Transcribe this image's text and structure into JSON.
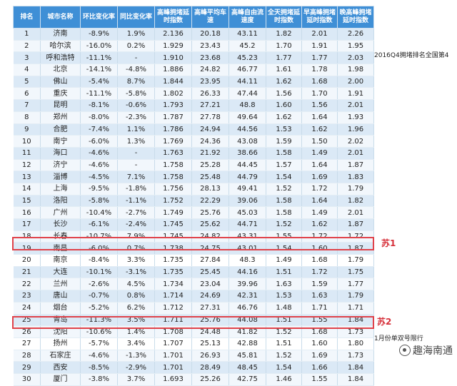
{
  "headers": [
    "排名",
    "城市名称",
    "环比变化率",
    "同比变化率",
    "高峰拥堵延时指数",
    "高峰平均车速",
    "高峰自由流速度",
    "全天拥堵延时指数",
    "早高峰拥堵延时指数",
    "晚高峰拥堵延时指数"
  ],
  "rows": [
    [
      "1",
      "济南",
      "-8.9%",
      "1.9%",
      "2.136",
      "20.18",
      "43.11",
      "1.82",
      "2.01",
      "2.26"
    ],
    [
      "2",
      "哈尔滨",
      "-16.0%",
      "0.2%",
      "1.929",
      "23.43",
      "45.2",
      "1.70",
      "1.91",
      "1.95"
    ],
    [
      "3",
      "呼和浩特",
      "-11.1%",
      "-",
      "1.910",
      "23.68",
      "45.23",
      "1.77",
      "1.77",
      "2.03"
    ],
    [
      "4",
      "北京",
      "-14.1%",
      "-4.8%",
      "1.886",
      "24.82",
      "46.77",
      "1.61",
      "1.78",
      "1.98"
    ],
    [
      "5",
      "佛山",
      "-5.4%",
      "8.7%",
      "1.844",
      "23.95",
      "44.11",
      "1.62",
      "1.68",
      "2.00"
    ],
    [
      "6",
      "重庆",
      "-11.1%",
      "-5.8%",
      "1.802",
      "26.33",
      "47.44",
      "1.56",
      "1.70",
      "1.91"
    ],
    [
      "7",
      "昆明",
      "-8.1%",
      "-0.6%",
      "1.793",
      "27.21",
      "48.8",
      "1.60",
      "1.56",
      "2.01"
    ],
    [
      "8",
      "郑州",
      "-8.0%",
      "-2.3%",
      "1.787",
      "27.78",
      "49.64",
      "1.62",
      "1.64",
      "1.93"
    ],
    [
      "9",
      "合肥",
      "-7.4%",
      "1.1%",
      "1.786",
      "24.94",
      "44.56",
      "1.53",
      "1.62",
      "1.96"
    ],
    [
      "10",
      "南宁",
      "-6.0%",
      "1.3%",
      "1.769",
      "24.36",
      "43.08",
      "1.59",
      "1.50",
      "2.02"
    ],
    [
      "11",
      "海口",
      "-4.6%",
      "-",
      "1.763",
      "21.92",
      "38.66",
      "1.58",
      "1.49",
      "2.01"
    ],
    [
      "12",
      "济宁",
      "-4.6%",
      "-",
      "1.758",
      "25.28",
      "44.45",
      "1.57",
      "1.64",
      "1.87"
    ],
    [
      "13",
      "淄博",
      "-4.5%",
      "7.1%",
      "1.758",
      "25.48",
      "44.79",
      "1.54",
      "1.69",
      "1.83"
    ],
    [
      "14",
      "上海",
      "-9.5%",
      "-1.8%",
      "1.756",
      "28.13",
      "49.41",
      "1.52",
      "1.72",
      "1.79"
    ],
    [
      "15",
      "洛阳",
      "-5.8%",
      "-1.1%",
      "1.752",
      "22.29",
      "39.06",
      "1.58",
      "1.64",
      "1.82"
    ],
    [
      "16",
      "广州",
      "-10.4%",
      "-2.7%",
      "1.749",
      "25.76",
      "45.03",
      "1.58",
      "1.49",
      "2.01"
    ],
    [
      "17",
      "长沙",
      "-6.1%",
      "-2.4%",
      "1.745",
      "25.62",
      "44.71",
      "1.52",
      "1.62",
      "1.87"
    ],
    [
      "18",
      "长春",
      "-10.7%",
      "7.9%",
      "1.745",
      "24.82",
      "43.31",
      "1.55",
      "1.72",
      "1.72"
    ],
    [
      "19",
      "南昌",
      "-6.0%",
      "0.7%",
      "1.738",
      "24.75",
      "43.01",
      "1.54",
      "1.60",
      "1.87"
    ],
    [
      "20",
      "南京",
      "-8.4%",
      "3.3%",
      "1.735",
      "27.84",
      "48.3",
      "1.49",
      "1.68",
      "1.79"
    ],
    [
      "21",
      "大连",
      "-10.1%",
      "-3.1%",
      "1.735",
      "25.45",
      "44.16",
      "1.51",
      "1.72",
      "1.75"
    ],
    [
      "22",
      "兰州",
      "-2.6%",
      "4.5%",
      "1.734",
      "23.04",
      "39.96",
      "1.63",
      "1.59",
      "1.77"
    ],
    [
      "23",
      "唐山",
      "-0.7%",
      "0.8%",
      "1.714",
      "24.69",
      "42.31",
      "1.53",
      "1.63",
      "1.79"
    ],
    [
      "24",
      "烟台",
      "-5.2%",
      "6.2%",
      "1.712",
      "27.31",
      "46.76",
      "1.48",
      "1.71",
      "1.71"
    ],
    [
      "25",
      "青岛",
      "-11.3%",
      "3.5%",
      "1.711",
      "25.76",
      "44.08",
      "1.51",
      "1.55",
      "1.84"
    ],
    [
      "26",
      "沈阳",
      "-10.6%",
      "1.4%",
      "1.708",
      "24.48",
      "41.82",
      "1.52",
      "1.68",
      "1.73"
    ],
    [
      "27",
      "扬州",
      "-5.7%",
      "3.4%",
      "1.707",
      "25.13",
      "42.88",
      "1.51",
      "1.60",
      "1.80"
    ],
    [
      "28",
      "石家庄",
      "-4.6%",
      "-1.3%",
      "1.701",
      "26.93",
      "45.81",
      "1.52",
      "1.69",
      "1.73"
    ],
    [
      "29",
      "西安",
      "-8.5%",
      "-2.9%",
      "1.701",
      "28.49",
      "48.45",
      "1.54",
      "1.66",
      "1.84"
    ],
    [
      "30",
      "厦门",
      "-3.8%",
      "3.7%",
      "1.693",
      "25.26",
      "42.75",
      "1.46",
      "1.55",
      "1.84"
    ]
  ],
  "annotations": {
    "row3_note": "2016Q4拥堵排名全国第4",
    "label_su1": "苏1",
    "label_su2": "苏2",
    "note_xian": "1月份单双号限行"
  },
  "watermark": {
    "icon": "wechat-avatar-icon",
    "text": "趣海南通"
  }
}
